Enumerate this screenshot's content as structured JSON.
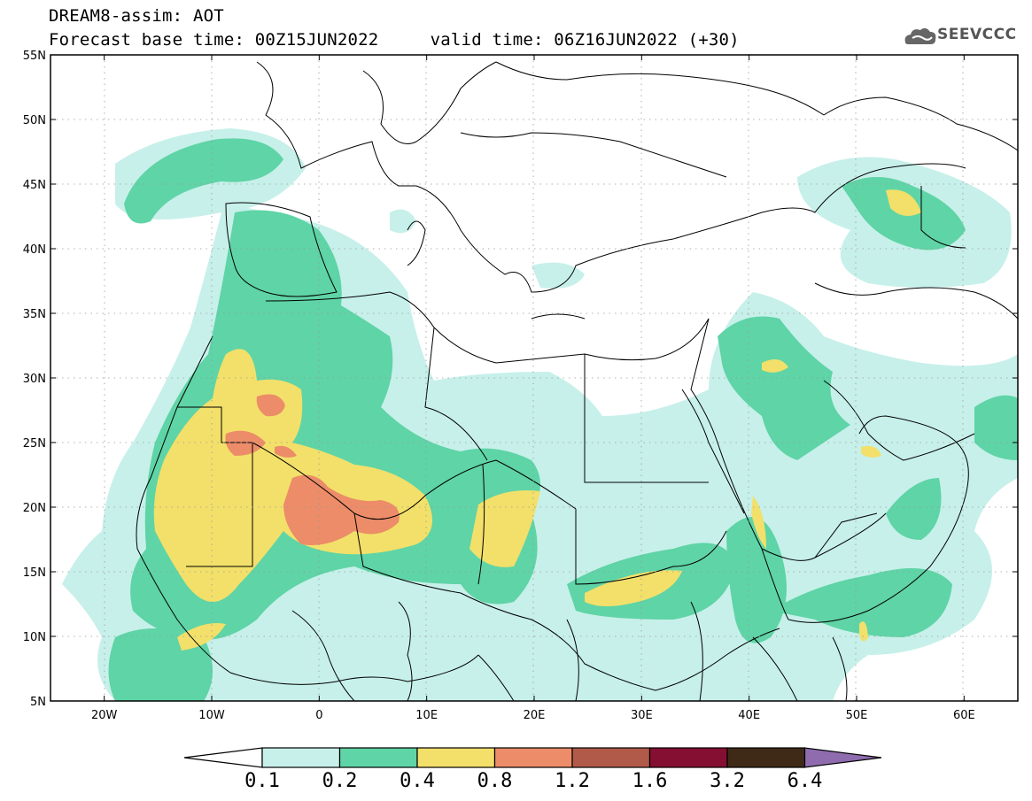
{
  "title": {
    "line1": "DREAM8-assim: AOT",
    "line2": "Forecast base time: 00Z15JUN2022     valid time: 06Z16JUN2022 (+30)"
  },
  "logo": {
    "text": "SEEVCCC",
    "icon": "cloud-icon"
  },
  "axes": {
    "lon_labels": [
      "20W",
      "10W",
      "0",
      "10E",
      "20E",
      "30E",
      "40E",
      "50E",
      "60E"
    ],
    "lon_values": [
      -20,
      -10,
      0,
      10,
      20,
      30,
      40,
      50,
      60
    ],
    "lat_labels": [
      "55N",
      "50N",
      "45N",
      "40N",
      "35N",
      "30N",
      "25N",
      "20N",
      "15N",
      "10N",
      "5N"
    ],
    "lat_values": [
      55,
      50,
      45,
      40,
      35,
      30,
      25,
      20,
      15,
      10,
      5
    ],
    "lon_range": [
      -25,
      65
    ],
    "lat_range": [
      5,
      55
    ],
    "grid": true
  },
  "colorbar": {
    "labels": [
      "0.1",
      "0.2",
      "0.4",
      "0.8",
      "1.2",
      "1.6",
      "3.2",
      "6.4"
    ],
    "colors": [
      "#ffffff",
      "#c7f0ea",
      "#5fd4a6",
      "#f2e06a",
      "#ec8c68",
      "#b15a49",
      "#850f32",
      "#3f2a18",
      "#8e6cae"
    ]
  }
}
